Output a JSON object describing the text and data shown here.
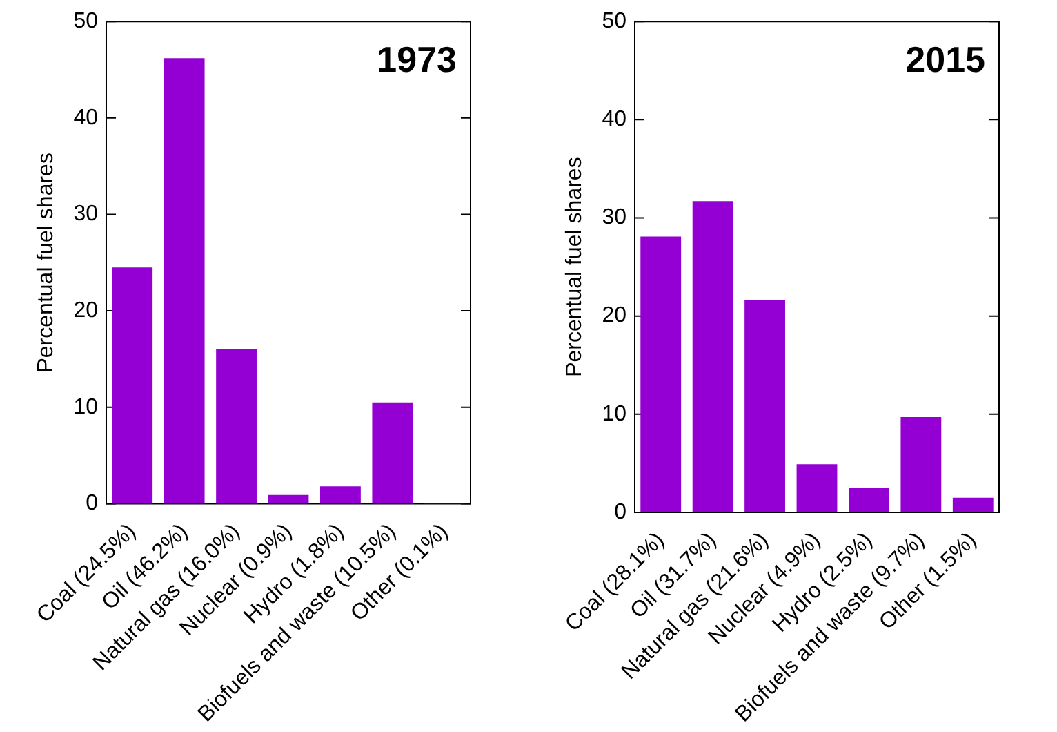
{
  "chart_data": [
    {
      "type": "bar",
      "title": "1973",
      "ylabel": "Percentual fuel shares",
      "categories": [
        "Coal (24.5%)",
        "Oil (46.2%)",
        "Natural gas (16.0%)",
        "Nuclear (0.9%)",
        "Hydro (1.8%)",
        "Biofuels and waste (10.5%)",
        "Other (0.1%)"
      ],
      "values": [
        24.5,
        46.2,
        16.0,
        0.9,
        1.8,
        10.5,
        0.1
      ],
      "color": "#9400d3",
      "ylim": [
        0,
        50
      ],
      "yticks": [
        0,
        10,
        20,
        30,
        40,
        50
      ]
    },
    {
      "type": "bar",
      "title": "2015",
      "ylabel": "Percentual fuel shares",
      "categories": [
        "Coal (28.1%)",
        "Oil (31.7%)",
        "Natural gas (21.6%)",
        "Nuclear (4.9%)",
        "Hydro (2.5%)",
        "Biofuels and waste (9.7%)",
        "Other (1.5%)"
      ],
      "values": [
        28.1,
        31.7,
        21.6,
        4.9,
        2.5,
        9.7,
        1.5
      ],
      "color": "#9400d3",
      "ylim": [
        0,
        50
      ],
      "yticks": [
        0,
        10,
        20,
        30,
        40,
        50
      ]
    }
  ]
}
